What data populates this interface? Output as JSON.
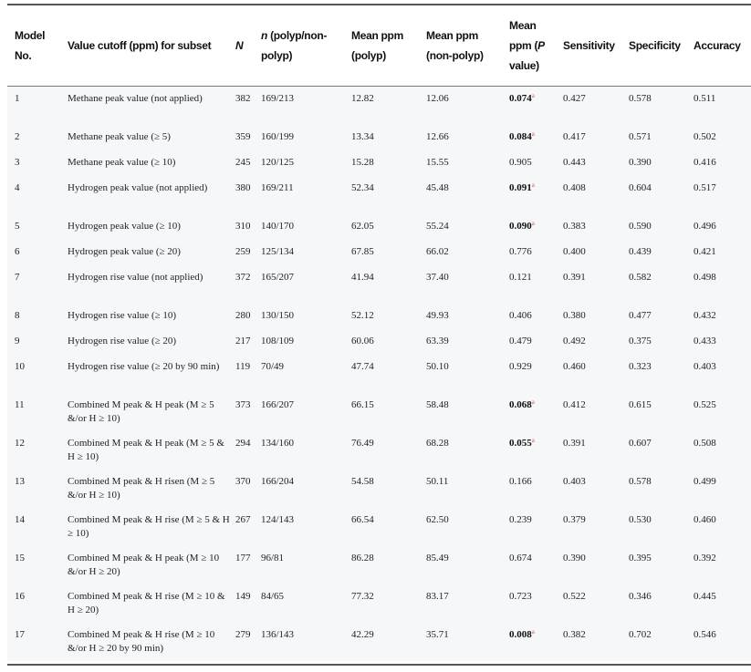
{
  "headers": {
    "model": "Model No.",
    "cutoff": "Value cutoff (ppm) for subset",
    "N": "N",
    "n_italic": "n",
    "n_rest": " (polyp/non-polyp)",
    "mean_polyp": "Mean ppm (polyp)",
    "mean_nonpolyp": "Mean ppm (non-polyp)",
    "mean_p_a": "Mean ppm (",
    "mean_p_italic": "P",
    "mean_p_b": " value)",
    "sensitivity": "Sensitivity",
    "specificity": "Specificity",
    "accuracy": "Accuracy"
  },
  "significance_mark": "a",
  "colors": {
    "significance_mark": "#d9534f"
  },
  "rows": [
    {
      "no": "1",
      "cutoff": "Methane peak value (not applied)",
      "N": "382",
      "n": "169/213",
      "mp": "12.82",
      "mnp": "12.06",
      "p": "0.074",
      "sig": true,
      "sens": "0.427",
      "spec": "0.578",
      "acc": "0.511"
    },
    {
      "no": "2",
      "cutoff": "Methane peak value (≥ 5)",
      "N": "359",
      "n": "160/199",
      "mp": "13.34",
      "mnp": "12.66",
      "p": "0.084",
      "sig": true,
      "sens": "0.417",
      "spec": "0.571",
      "acc": "0.502"
    },
    {
      "no": "3",
      "cutoff": "Methane peak value (≥ 10)",
      "N": "245",
      "n": "120/125",
      "mp": "15.28",
      "mnp": "15.55",
      "p": "0.905",
      "sig": false,
      "sens": "0.443",
      "spec": "0.390",
      "acc": "0.416"
    },
    {
      "no": "4",
      "cutoff": "Hydrogen peak value (not applied)",
      "N": "380",
      "n": "169/211",
      "mp": "52.34",
      "mnp": "45.48",
      "p": "0.091",
      "sig": true,
      "sens": "0.408",
      "spec": "0.604",
      "acc": "0.517"
    },
    {
      "no": "5",
      "cutoff": "Hydrogen peak value (≥ 10)",
      "N": "310",
      "n": "140/170",
      "mp": "62.05",
      "mnp": "55.24",
      "p": "0.090",
      "sig": true,
      "sens": "0.383",
      "spec": "0.590",
      "acc": "0.496"
    },
    {
      "no": "6",
      "cutoff": "Hydrogen peak value (≥ 20)",
      "N": "259",
      "n": "125/134",
      "mp": "67.85",
      "mnp": "66.02",
      "p": "0.776",
      "sig": false,
      "sens": "0.400",
      "spec": "0.439",
      "acc": "0.421"
    },
    {
      "no": "7",
      "cutoff": "Hydrogen rise value (not applied)",
      "N": "372",
      "n": "165/207",
      "mp": "41.94",
      "mnp": "37.40",
      "p": "0.121",
      "sig": false,
      "sens": "0.391",
      "spec": "0.582",
      "acc": "0.498"
    },
    {
      "no": "8",
      "cutoff": "Hydrogen rise value (≥ 10)",
      "N": "280",
      "n": "130/150",
      "mp": "52.12",
      "mnp": "49.93",
      "p": "0.406",
      "sig": false,
      "sens": "0.380",
      "spec": "0.477",
      "acc": "0.432"
    },
    {
      "no": "9",
      "cutoff": "Hydrogen rise value (≥ 20)",
      "N": "217",
      "n": "108/109",
      "mp": "60.06",
      "mnp": "63.39",
      "p": "0.479",
      "sig": false,
      "sens": "0.492",
      "spec": "0.375",
      "acc": "0.433"
    },
    {
      "no": "10",
      "cutoff": "Hydrogen rise value (≥ 20 by 90 min)",
      "N": "119",
      "n": "70/49",
      "mp": "47.74",
      "mnp": "50.10",
      "p": "0.929",
      "sig": false,
      "sens": "0.460",
      "spec": "0.323",
      "acc": "0.403"
    },
    {
      "no": "11",
      "cutoff": "Combined M peak & H peak (M ≥ 5 &/or H ≥ 10)",
      "N": "373",
      "n": "166/207",
      "mp": "66.15",
      "mnp": "58.48",
      "p": "0.068",
      "sig": true,
      "sens": "0.412",
      "spec": "0.615",
      "acc": "0.525"
    },
    {
      "no": "12",
      "cutoff": "Combined M peak & H peak (M ≥ 5 & H ≥ 10)",
      "N": "294",
      "n": "134/160",
      "mp": "76.49",
      "mnp": "68.28",
      "p": "0.055",
      "sig": true,
      "sens": "0.391",
      "spec": "0.607",
      "acc": "0.508"
    },
    {
      "no": "13",
      "cutoff": "Combined M peak & H risen (M ≥ 5 &/or H ≥ 10)",
      "N": "370",
      "n": "166/204",
      "mp": "54.58",
      "mnp": "50.11",
      "p": "0.166",
      "sig": false,
      "sens": "0.403",
      "spec": "0.578",
      "acc": "0.499"
    },
    {
      "no": "14",
      "cutoff": "Combined M peak & H rise (M ≥ 5 & H ≥ 10)",
      "N": "267",
      "n": "124/143",
      "mp": "66.54",
      "mnp": "62.50",
      "p": "0.239",
      "sig": false,
      "sens": "0.379",
      "spec": "0.530",
      "acc": "0.460"
    },
    {
      "no": "15",
      "cutoff": "Combined M peak & H peak (M ≥ 10 &/or H ≥ 20)",
      "N": "177",
      "n": "96/81",
      "mp": "86.28",
      "mnp": "85.49",
      "p": "0.674",
      "sig": false,
      "sens": "0.390",
      "spec": "0.395",
      "acc": "0.392"
    },
    {
      "no": "16",
      "cutoff": "Combined M peak & H rise (M ≥ 10 & H ≥ 20)",
      "N": "149",
      "n": "84/65",
      "mp": "77.32",
      "mnp": "83.17",
      "p": "0.723",
      "sig": false,
      "sens": "0.522",
      "spec": "0.346",
      "acc": "0.445"
    },
    {
      "no": "17",
      "cutoff": "Combined M peak & H rise (M ≥ 10 &/or H ≥ 20 by 90 min)",
      "N": "279",
      "n": "136/143",
      "mp": "42.29",
      "mnp": "35.71",
      "p": "0.008",
      "sig": true,
      "sens": "0.382",
      "spec": "0.702",
      "acc": "0.546"
    }
  ]
}
